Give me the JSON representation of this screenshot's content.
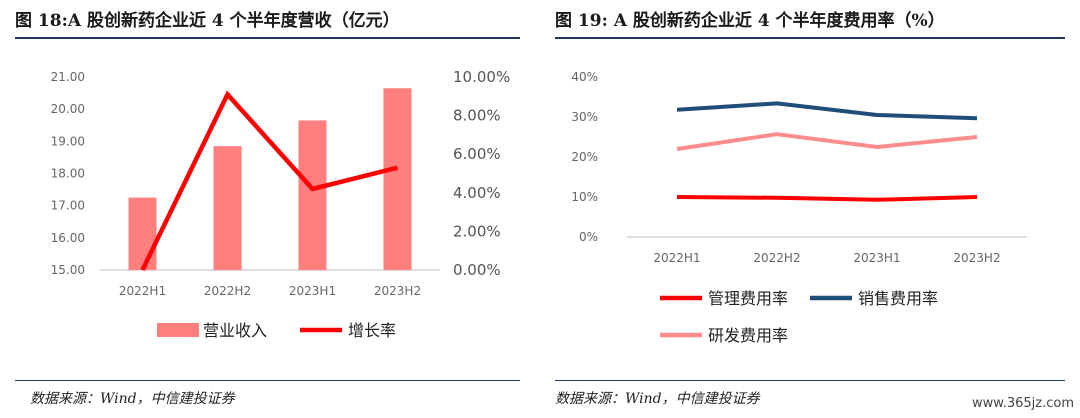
{
  "left": {
    "title": "图 18:A 股创新药企业近 4 个半年度营收（亿元）",
    "source": "数据来源：Wind，中信建投证券",
    "chart_data": {
      "type": "bar",
      "categories": [
        "2022H1",
        "2022H2",
        "2023H1",
        "2023H2"
      ],
      "series": [
        {
          "name": "营业收入",
          "kind": "bar",
          "axis": "left",
          "color": "#ff7f7f",
          "values": [
            17.25,
            18.85,
            19.65,
            20.65
          ]
        },
        {
          "name": "增长率",
          "kind": "line",
          "axis": "right",
          "color": "#ff0000",
          "values": [
            0.0,
            9.1,
            4.2,
            5.3
          ]
        }
      ],
      "y_left": {
        "min": 15,
        "max": 21,
        "ticks": [
          "15.00",
          "16.00",
          "17.00",
          "18.00",
          "19.00",
          "20.00",
          "21.00"
        ]
      },
      "y_right": {
        "min": 0,
        "max": 10,
        "ticks": [
          "0.00%",
          "2.00%",
          "4.00%",
          "6.00%",
          "8.00%",
          "10.00%"
        ]
      },
      "legend_position": "bottom",
      "grid": false
    }
  },
  "right": {
    "title": "图 19: A 股创新药企业近 4 个半年度费用率（%）",
    "source": "数据来源：Wind，中信建投证券",
    "chart_data": {
      "type": "line",
      "categories": [
        "2022H1",
        "2022H2",
        "2023H1",
        "2023H2"
      ],
      "series": [
        {
          "name": "管理费用率",
          "color": "#ff0000",
          "values": [
            10.0,
            9.8,
            9.3,
            10.0
          ]
        },
        {
          "name": "销售费用率",
          "color": "#1f4e79",
          "values": [
            31.8,
            33.4,
            30.5,
            29.7
          ]
        },
        {
          "name": "研发费用率",
          "color": "#ff8c8c",
          "values": [
            22.0,
            25.7,
            22.5,
            25.0
          ]
        }
      ],
      "y": {
        "min": 0,
        "max": 40,
        "ticks": [
          "0%",
          "10%",
          "20%",
          "30%",
          "40%"
        ]
      },
      "legend_position": "bottom",
      "grid": false
    }
  },
  "watermark": "www.365jz.com"
}
